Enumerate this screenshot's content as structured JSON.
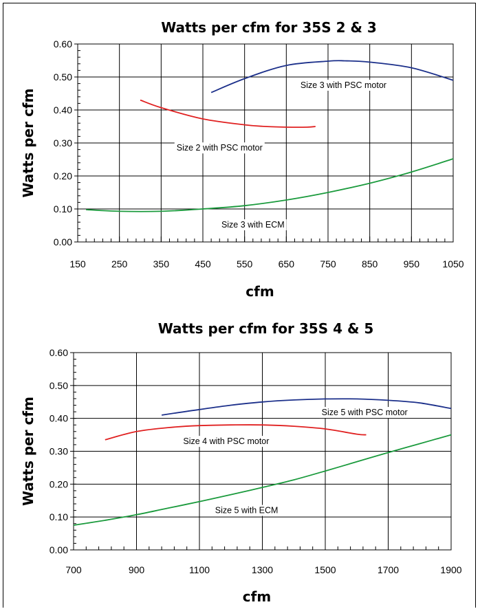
{
  "chart_data": [
    {
      "type": "line",
      "title": "Watts per cfm for 35S 2 & 3",
      "xlabel": "cfm",
      "ylabel": "Watts per cfm",
      "xlim": [
        150,
        1050
      ],
      "ylim": [
        0,
        0.6
      ],
      "xticks": [
        150,
        250,
        350,
        450,
        550,
        650,
        750,
        850,
        950,
        1050
      ],
      "xtick_labels": [
        "150",
        "250",
        "350",
        "450",
        "550",
        "650",
        "750",
        "850",
        "950",
        "1050"
      ],
      "yticks": [
        0,
        0.1,
        0.2,
        0.3,
        0.4,
        0.5,
        0.6
      ],
      "ytick_labels": [
        "0.00",
        "0.10",
        "0.20",
        "0.30",
        "0.40",
        "0.50",
        "0.60"
      ],
      "x_minor_step": 20,
      "grid": true,
      "series": [
        {
          "name": "Size 3 with PSC motor",
          "color": "#1b2f8a",
          "x": [
            470,
            550,
            650,
            750,
            790,
            850,
            950,
            1050
          ],
          "y": [
            0.453,
            0.495,
            0.535,
            0.548,
            0.549,
            0.545,
            0.528,
            0.49
          ]
        },
        {
          "name": "Size 2 with PSC motor",
          "color": "#e02020",
          "x": [
            300,
            350,
            450,
            550,
            600,
            650,
            700,
            720
          ],
          "y": [
            0.43,
            0.407,
            0.373,
            0.355,
            0.35,
            0.348,
            0.348,
            0.35
          ]
        },
        {
          "name": "Size 3 with ECM",
          "color": "#1a9a3c",
          "x": [
            170,
            250,
            350,
            450,
            550,
            650,
            750,
            850,
            950,
            1050
          ],
          "y": [
            0.098,
            0.093,
            0.093,
            0.1,
            0.11,
            0.127,
            0.15,
            0.178,
            0.212,
            0.252
          ]
        }
      ],
      "annotations": [
        {
          "text": "Size 3 with PSC motor",
          "x": 787,
          "y": 0.475
        },
        {
          "text": "Size 2 with PSC motor",
          "x": 490,
          "y": 0.285
        },
        {
          "text": "Size 3 with ECM",
          "x": 570,
          "y": 0.052
        }
      ]
    },
    {
      "type": "line",
      "title": "Watts per cfm for 35S 4 & 5",
      "xlabel": "cfm",
      "ylabel": "Watts per cfm",
      "xlim": [
        700,
        1900
      ],
      "ylim": [
        0,
        0.6
      ],
      "xticks": [
        700,
        900,
        1100,
        1300,
        1500,
        1700,
        1900
      ],
      "xtick_labels": [
        "700",
        "900",
        "1100",
        "1300",
        "1500",
        "1700",
        "1900"
      ],
      "yticks": [
        0,
        0.1,
        0.2,
        0.3,
        0.4,
        0.5,
        0.6
      ],
      "ytick_labels": [
        "0.00",
        "0.10",
        "0.20",
        "0.30",
        "0.40",
        "0.50",
        "0.60"
      ],
      "x_minor_step": 40,
      "grid": true,
      "series": [
        {
          "name": "Size 5 with PSC motor",
          "color": "#1b2f8a",
          "x": [
            980,
            1100,
            1200,
            1300,
            1400,
            1500,
            1600,
            1700,
            1800,
            1900
          ],
          "y": [
            0.41,
            0.427,
            0.44,
            0.45,
            0.456,
            0.459,
            0.459,
            0.455,
            0.447,
            0.43
          ]
        },
        {
          "name": "Size 4 with PSC motor",
          "color": "#e02020",
          "x": [
            800,
            900,
            1000,
            1100,
            1200,
            1300,
            1400,
            1500,
            1600,
            1630
          ],
          "y": [
            0.335,
            0.36,
            0.372,
            0.378,
            0.38,
            0.38,
            0.376,
            0.368,
            0.352,
            0.35
          ]
        },
        {
          "name": "Size 5 with ECM",
          "color": "#1a9a3c",
          "x": [
            700,
            800,
            900,
            1000,
            1100,
            1200,
            1300,
            1400,
            1500,
            1600,
            1700,
            1800,
            1900
          ],
          "y": [
            0.075,
            0.09,
            0.107,
            0.127,
            0.147,
            0.168,
            0.19,
            0.213,
            0.24,
            0.268,
            0.296,
            0.323,
            0.35
          ]
        }
      ],
      "annotations": [
        {
          "text": "Size 5 with PSC motor",
          "x": 1625,
          "y": 0.418
        },
        {
          "text": "Size 4 with PSC motor",
          "x": 1185,
          "y": 0.33
        },
        {
          "text": "Size 5 with ECM",
          "x": 1250,
          "y": 0.12
        }
      ]
    }
  ]
}
